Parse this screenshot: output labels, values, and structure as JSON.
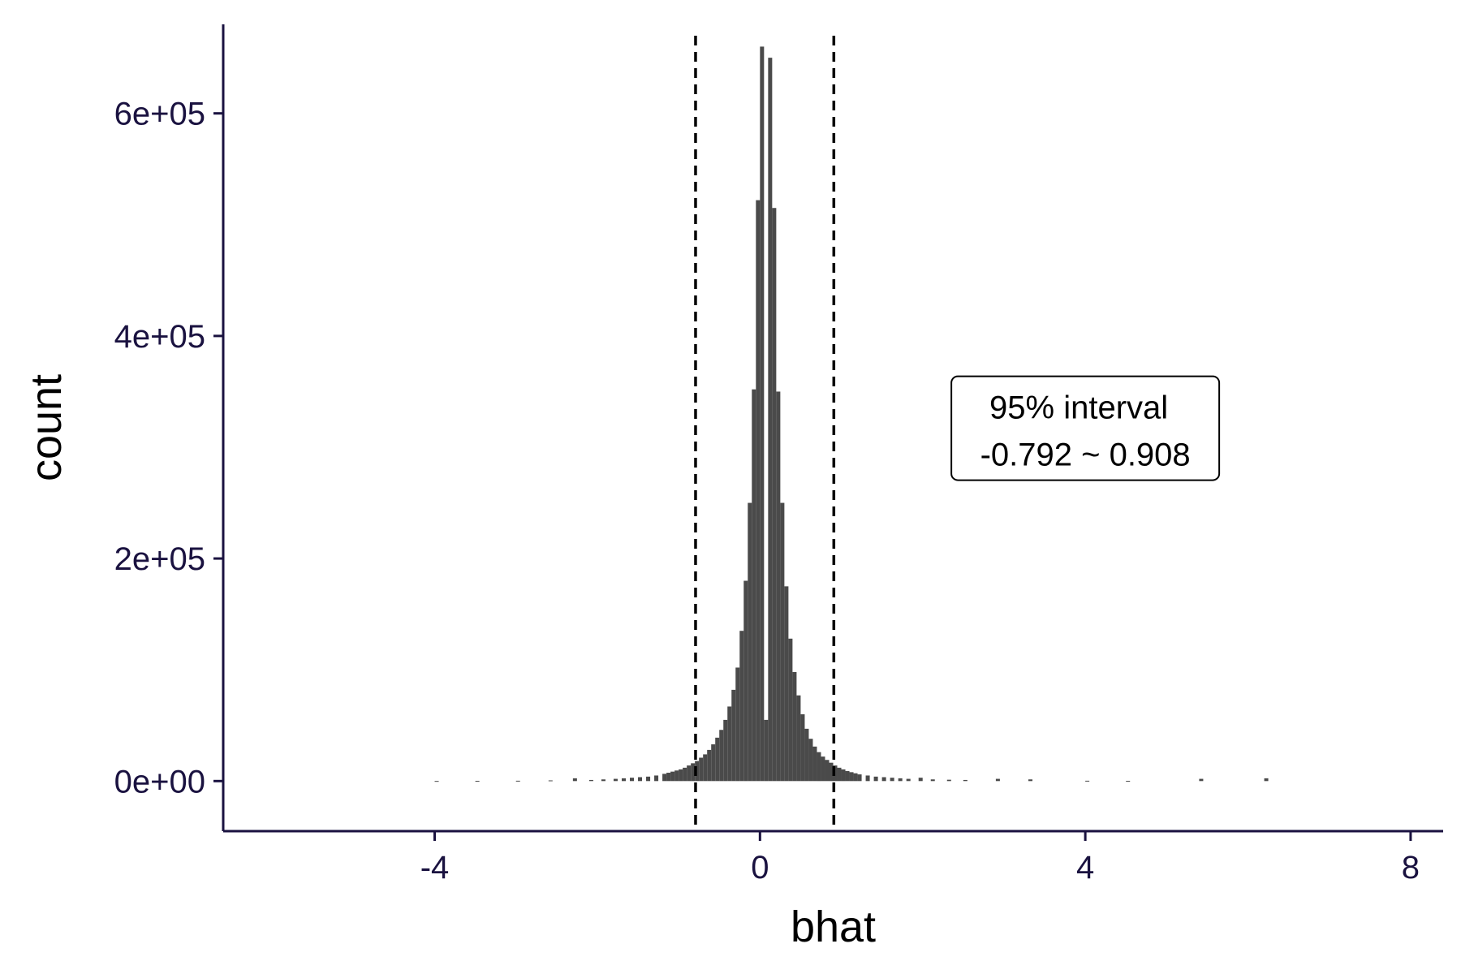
{
  "chart_data": {
    "type": "bar",
    "subtype": "histogram",
    "xlabel": "bhat",
    "ylabel": "count",
    "xlim": [
      -6.6,
      8.4
    ],
    "ylim": [
      -45000,
      680000
    ],
    "x_ticks": [
      {
        "value": -4,
        "label": "-4"
      },
      {
        "value": 0,
        "label": "0"
      },
      {
        "value": 4,
        "label": "4"
      },
      {
        "value": 8,
        "label": "8"
      }
    ],
    "y_ticks": [
      {
        "value": 0,
        "label": "0e+00"
      },
      {
        "value": 200000,
        "label": "2e+05"
      },
      {
        "value": 400000,
        "label": "4e+05"
      },
      {
        "value": 600000,
        "label": "6e+05"
      }
    ],
    "bin_width": 0.05,
    "bins": [
      {
        "x": -4.0,
        "count": 100
      },
      {
        "x": -3.5,
        "count": 200
      },
      {
        "x": -3.0,
        "count": 300
      },
      {
        "x": -2.6,
        "count": 600
      },
      {
        "x": -2.3,
        "count": 2500
      },
      {
        "x": -2.1,
        "count": 1000
      },
      {
        "x": -1.95,
        "count": 1500
      },
      {
        "x": -1.8,
        "count": 2000
      },
      {
        "x": -1.7,
        "count": 2500
      },
      {
        "x": -1.6,
        "count": 3000
      },
      {
        "x": -1.5,
        "count": 3500
      },
      {
        "x": -1.4,
        "count": 4000
      },
      {
        "x": -1.3,
        "count": 5000
      },
      {
        "x": -1.2,
        "count": 6500
      },
      {
        "x": -1.15,
        "count": 7500
      },
      {
        "x": -1.1,
        "count": 8500
      },
      {
        "x": -1.05,
        "count": 9500
      },
      {
        "x": -1.0,
        "count": 10500
      },
      {
        "x": -0.95,
        "count": 12000
      },
      {
        "x": -0.9,
        "count": 14000
      },
      {
        "x": -0.85,
        "count": 16000
      },
      {
        "x": -0.8,
        "count": 18000
      },
      {
        "x": -0.75,
        "count": 21000
      },
      {
        "x": -0.7,
        "count": 24000
      },
      {
        "x": -0.65,
        "count": 28000
      },
      {
        "x": -0.6,
        "count": 33000
      },
      {
        "x": -0.55,
        "count": 39000
      },
      {
        "x": -0.5,
        "count": 46000
      },
      {
        "x": -0.45,
        "count": 55000
      },
      {
        "x": -0.4,
        "count": 67000
      },
      {
        "x": -0.35,
        "count": 82000
      },
      {
        "x": -0.3,
        "count": 102000
      },
      {
        "x": -0.25,
        "count": 135000
      },
      {
        "x": -0.2,
        "count": 180000
      },
      {
        "x": -0.15,
        "count": 250000
      },
      {
        "x": -0.1,
        "count": 352000
      },
      {
        "x": -0.05,
        "count": 522000
      },
      {
        "x": 0.0,
        "count": 660000
      },
      {
        "x": 0.05,
        "count": 55000
      },
      {
        "x": 0.1,
        "count": 650000
      },
      {
        "x": 0.15,
        "count": 515000
      },
      {
        "x": 0.2,
        "count": 350000
      },
      {
        "x": 0.25,
        "count": 250000
      },
      {
        "x": 0.3,
        "count": 175000
      },
      {
        "x": 0.35,
        "count": 128000
      },
      {
        "x": 0.4,
        "count": 98000
      },
      {
        "x": 0.45,
        "count": 77000
      },
      {
        "x": 0.5,
        "count": 60000
      },
      {
        "x": 0.55,
        "count": 47000
      },
      {
        "x": 0.6,
        "count": 38000
      },
      {
        "x": 0.65,
        "count": 31000
      },
      {
        "x": 0.7,
        "count": 26000
      },
      {
        "x": 0.75,
        "count": 22000
      },
      {
        "x": 0.8,
        "count": 19000
      },
      {
        "x": 0.85,
        "count": 16500
      },
      {
        "x": 0.9,
        "count": 14000
      },
      {
        "x": 0.95,
        "count": 12000
      },
      {
        "x": 1.0,
        "count": 10500
      },
      {
        "x": 1.05,
        "count": 9000
      },
      {
        "x": 1.1,
        "count": 8000
      },
      {
        "x": 1.15,
        "count": 7000
      },
      {
        "x": 1.2,
        "count": 6000
      },
      {
        "x": 1.3,
        "count": 5000
      },
      {
        "x": 1.4,
        "count": 4000
      },
      {
        "x": 1.5,
        "count": 3500
      },
      {
        "x": 1.6,
        "count": 3000
      },
      {
        "x": 1.7,
        "count": 2500
      },
      {
        "x": 1.8,
        "count": 2000
      },
      {
        "x": 1.95,
        "count": 3000
      },
      {
        "x": 2.1,
        "count": 1500
      },
      {
        "x": 2.3,
        "count": 1200
      },
      {
        "x": 2.5,
        "count": 1000
      },
      {
        "x": 2.9,
        "count": 2000
      },
      {
        "x": 3.3,
        "count": 1500
      },
      {
        "x": 4.0,
        "count": 300
      },
      {
        "x": 4.5,
        "count": 200
      },
      {
        "x": 5.4,
        "count": 2000
      },
      {
        "x": 6.2,
        "count": 2500
      }
    ],
    "reference_lines": [
      {
        "axis": "x",
        "value": -0.792,
        "style": "dashed"
      },
      {
        "axis": "x",
        "value": 0.908,
        "style": "dashed"
      }
    ],
    "annotation": {
      "lines": [
        "95% interval",
        "-0.792 ~ 0.908"
      ],
      "anchor": {
        "x": 4.0,
        "y": 320000
      }
    },
    "bar_color": "#4a4a4a",
    "axis_color": "#1a1240",
    "grid": false,
    "legend": "none"
  }
}
